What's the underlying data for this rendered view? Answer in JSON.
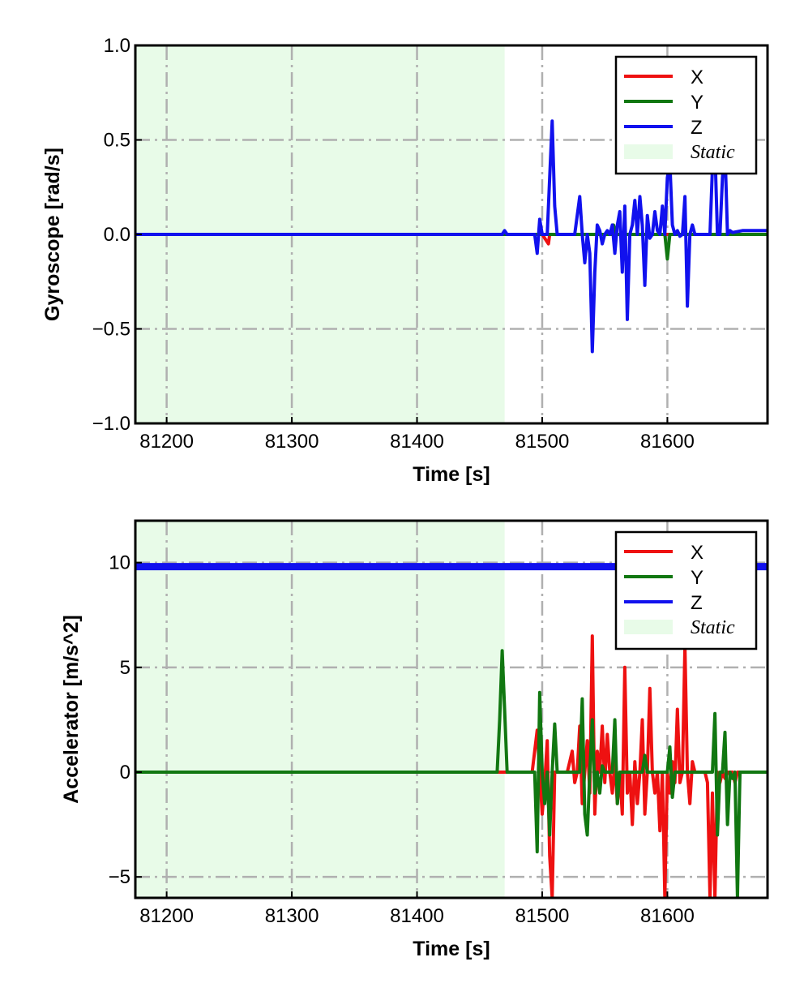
{
  "chart_data": [
    {
      "type": "line",
      "xlabel": "Time [s]",
      "ylabel": "Gyroscope [rad/s]",
      "xlim": [
        81175,
        81680
      ],
      "ylim": [
        -1.0,
        1.0
      ],
      "xticks": [
        81200,
        81300,
        81400,
        81500,
        81600
      ],
      "xtick_labels": [
        "81200",
        "81300",
        "81400",
        "81500",
        "81600"
      ],
      "yticks": [
        -1.0,
        -0.5,
        0.0,
        0.5,
        1.0
      ],
      "ytick_labels": [
        "−1.0",
        "−0.5",
        "0.0",
        "0.5",
        "1.0"
      ],
      "grid": true,
      "legend_placement": "top-right",
      "shaded_region": {
        "label": "Static",
        "x_start": 81175,
        "x_end": 81470,
        "color": "#e8fbe8"
      },
      "series": [
        {
          "name": "X",
          "color": "#ee1111",
          "x": [
            81175,
            81470,
            81495,
            81500,
            81505,
            81506,
            81508,
            81530,
            81540,
            81560,
            81580,
            81600,
            81620,
            81640,
            81680
          ],
          "y": [
            0.0,
            0.0,
            0.0,
            0.0,
            -0.05,
            0.0,
            0.0,
            0.0,
            0.0,
            0.0,
            0.0,
            0.0,
            0.0,
            0.0,
            0.0
          ]
        },
        {
          "name": "Y",
          "color": "#117711",
          "x": [
            81175,
            81470,
            81555,
            81557,
            81559,
            81598,
            81600,
            81602,
            81680
          ],
          "y": [
            0.0,
            0.0,
            0.0,
            0.05,
            0.0,
            0.0,
            -0.13,
            0.0,
            0.0
          ]
        },
        {
          "name": "Z",
          "color": "#1111ee",
          "x": [
            81175,
            81468,
            81470,
            81472,
            81494,
            81496,
            81498,
            81500,
            81504,
            81506,
            81508,
            81510,
            81512,
            81526,
            81528,
            81530,
            81532,
            81534,
            81536,
            81538,
            81540,
            81542,
            81544,
            81546,
            81548,
            81550,
            81552,
            81554,
            81556,
            81558,
            81560,
            81562,
            81564,
            81566,
            81568,
            81570,
            81572,
            81574,
            81576,
            81578,
            81580,
            81582,
            81584,
            81586,
            81588,
            81590,
            81592,
            81594,
            81596,
            81598,
            81600,
            81602,
            81604,
            81606,
            81608,
            81610,
            81612,
            81614,
            81616,
            81618,
            81620,
            81622,
            81624,
            81634,
            81636,
            81638,
            81640,
            81642,
            81644,
            81646,
            81648,
            81650,
            81652,
            81660,
            81680
          ],
          "y": [
            0.0,
            0.0,
            0.02,
            0.0,
            0.0,
            -0.1,
            0.08,
            0.0,
            0.0,
            0.3,
            0.6,
            0.15,
            0.0,
            0.0,
            0.1,
            0.2,
            0.0,
            -0.15,
            0.0,
            -0.1,
            -0.62,
            -0.2,
            0.05,
            0.02,
            -0.05,
            0.0,
            0.02,
            0.0,
            0.05,
            -0.1,
            0.05,
            0.12,
            -0.2,
            0.15,
            -0.45,
            0.0,
            0.05,
            0.18,
            0.0,
            0.2,
            0.05,
            -0.27,
            0.1,
            -0.02,
            0.0,
            0.12,
            0.02,
            0.0,
            0.15,
            0.0,
            0.3,
            0.38,
            0.05,
            0.0,
            0.02,
            -0.01,
            0.0,
            0.2,
            -0.38,
            0.0,
            0.05,
            0.0,
            0.0,
            0.0,
            0.35,
            0.45,
            0.0,
            0.0,
            0.3,
            0.45,
            0.0,
            0.02,
            0.01,
            0.02,
            0.02
          ]
        }
      ]
    },
    {
      "type": "line",
      "xlabel": "Time [s]",
      "ylabel": "Accelerator [m/s^2]",
      "xlim": [
        81175,
        81680
      ],
      "ylim": [
        -6.0,
        12.0
      ],
      "xticks": [
        81200,
        81300,
        81400,
        81500,
        81600
      ],
      "xtick_labels": [
        "81200",
        "81300",
        "81400",
        "81500",
        "81600"
      ],
      "yticks": [
        -5,
        0,
        5,
        10
      ],
      "ytick_labels": [
        "−5",
        "0",
        "5",
        "10"
      ],
      "grid": true,
      "legend_placement": "top-right",
      "shaded_region": {
        "label": "Static",
        "x_start": 81175,
        "x_end": 81470,
        "color": "#e8fbe8"
      },
      "series": [
        {
          "name": "X",
          "color": "#ee1111",
          "x": [
            81175,
            81470,
            81492,
            81494,
            81496,
            81498,
            81500,
            81502,
            81504,
            81506,
            81508,
            81510,
            81512,
            81520,
            81522,
            81524,
            81526,
            81528,
            81530,
            81532,
            81534,
            81536,
            81538,
            81540,
            81542,
            81544,
            81546,
            81548,
            81550,
            81552,
            81554,
            81556,
            81558,
            81560,
            81562,
            81564,
            81566,
            81568,
            81570,
            81572,
            81574,
            81576,
            81578,
            81580,
            81582,
            81584,
            81586,
            81588,
            81590,
            81592,
            81594,
            81596,
            81598,
            81600,
            81602,
            81604,
            81606,
            81608,
            81610,
            81612,
            81614,
            81616,
            81618,
            81620,
            81622,
            81630,
            81632,
            81634,
            81636,
            81638,
            81640,
            81642,
            81644,
            81646,
            81648,
            81650,
            81652,
            81654,
            81656,
            81660,
            81680
          ],
          "y": [
            0.0,
            0.0,
            0.0,
            1.0,
            2.0,
            0.0,
            -2.0,
            -0.5,
            1.5,
            -4.0,
            -6.0,
            0.0,
            0.0,
            0.0,
            0.5,
            1.0,
            -0.5,
            0.0,
            2.2,
            -1.5,
            0.0,
            1.5,
            -1.0,
            6.5,
            -2.0,
            1.0,
            0.0,
            2.2,
            -0.5,
            1.8,
            0.0,
            -1.0,
            0.5,
            -1.5,
            0.0,
            -2.0,
            5.0,
            -1.0,
            0.0,
            -2.5,
            0.5,
            -1.5,
            0.0,
            2.5,
            -2.0,
            0.0,
            4.0,
            0.0,
            -1.0,
            0.0,
            -2.8,
            0.0,
            -6.0,
            0.0,
            -1.0,
            0.5,
            -0.5,
            3.0,
            -0.5,
            0.0,
            6.0,
            0.0,
            -1.5,
            0.5,
            0.0,
            0.0,
            -0.5,
            -6.0,
            -1.0,
            -6.0,
            0.0,
            -0.5,
            0.0,
            -0.3,
            0.0,
            0.0,
            0.0,
            -0.5,
            0.0,
            0.0,
            0.0
          ]
        },
        {
          "name": "Y",
          "color": "#117711",
          "x": [
            81175,
            81464,
            81466,
            81468,
            81470,
            81472,
            81474,
            81476,
            81494,
            81496,
            81498,
            81500,
            81502,
            81504,
            81506,
            81508,
            81510,
            81512,
            81514,
            81530,
            81532,
            81534,
            81536,
            81538,
            81540,
            81542,
            81544,
            81546,
            81548,
            81550,
            81556,
            81558,
            81560,
            81562,
            81580,
            81582,
            81584,
            81600,
            81602,
            81604,
            81606,
            81636,
            81638,
            81640,
            81642,
            81644,
            81646,
            81648,
            81650,
            81652,
            81654,
            81656,
            81658,
            81660,
            81662,
            81680
          ],
          "y": [
            0.0,
            0.0,
            2.5,
            5.8,
            3.0,
            0.0,
            0.0,
            0.0,
            0.0,
            -3.8,
            3.8,
            0.0,
            -1.5,
            0.0,
            -3.0,
            0.0,
            2.3,
            0.0,
            0.0,
            0.0,
            3.5,
            -2.0,
            -3.0,
            0.0,
            2.5,
            -1.0,
            0.0,
            -1.0,
            0.3,
            0.0,
            0.0,
            2.5,
            -1.5,
            0.0,
            0.0,
            0.8,
            0.0,
            0.0,
            1.2,
            -1.2,
            0.0,
            0.0,
            2.8,
            -3.0,
            0.0,
            0.0,
            1.9,
            -2.5,
            0.0,
            -0.3,
            0.0,
            -6.0,
            0.0,
            0.0,
            0.0,
            0.0
          ]
        },
        {
          "name": "Z",
          "color": "#1111ee",
          "x": [
            81175,
            81680
          ],
          "y": [
            9.81,
            9.81
          ]
        }
      ]
    }
  ]
}
